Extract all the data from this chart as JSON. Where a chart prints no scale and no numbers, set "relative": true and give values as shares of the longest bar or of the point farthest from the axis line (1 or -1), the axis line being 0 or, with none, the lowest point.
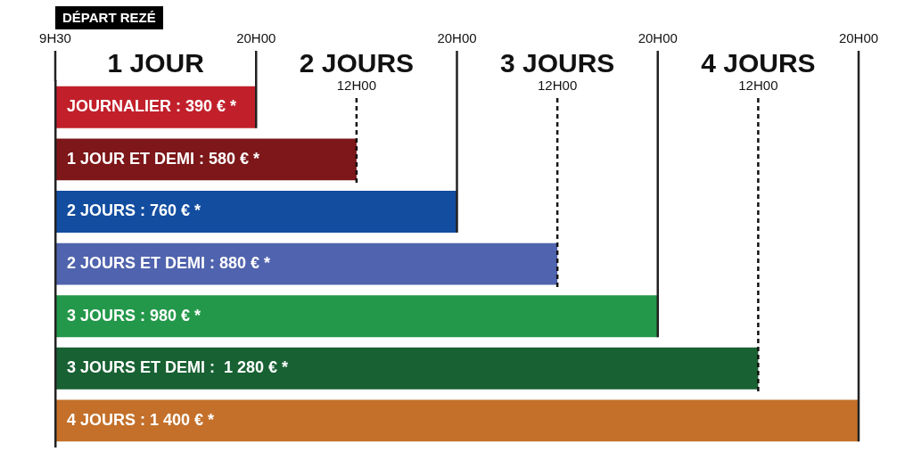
{
  "chart_data": {
    "type": "bar",
    "orientation": "horizontal",
    "relative": true,
    "title": "DÉPART REZÉ",
    "categories": [
      "JOURNALIER : 390 € *",
      "1 JOUR ET DEMI : 580 € *",
      "2 JOURS : 760 € *",
      "2 JOURS ET DEMI : 880 € *",
      "3 JOURS : 980 € *",
      "3 JOURS ET DEMI :  1 280 € *",
      "4 JOURS : 1 400 € *"
    ],
    "values": [
      0.25,
      0.375,
      0.5,
      0.625,
      0.75,
      0.875,
      1
    ],
    "colors": [
      "#c1202b",
      "#7d1719",
      "#124da0",
      "#5063ae",
      "#23984a",
      "#186133",
      "#c4702a"
    ],
    "ref_lines": [
      {
        "axis": "x",
        "value": 0.25,
        "label": "20H00",
        "color": "#222222",
        "line_style": "solid"
      },
      {
        "axis": "x",
        "value": 0.5,
        "label": "20H00",
        "color": "#222222",
        "line_style": "solid"
      },
      {
        "axis": "x",
        "value": 0.75,
        "label": "20H00",
        "color": "#222222",
        "line_style": "solid"
      },
      {
        "axis": "x",
        "value": 1,
        "label": "20H00",
        "color": "#222222",
        "line_style": "solid"
      },
      {
        "axis": "x",
        "value": 0.375,
        "label": "12H00",
        "color": "#111111",
        "line_style": "dashed"
      },
      {
        "axis": "x",
        "value": 0.625,
        "label": "12H00",
        "color": "#111111",
        "line_style": "dashed"
      },
      {
        "axis": "x",
        "value": 0.875,
        "label": "12H00",
        "color": "#111111",
        "line_style": "dashed"
      }
    ],
    "annotations": [
      "9H30",
      "1 JOUR",
      "2 JOURS",
      "3 JOURS",
      "4 JOURS"
    ]
  }
}
